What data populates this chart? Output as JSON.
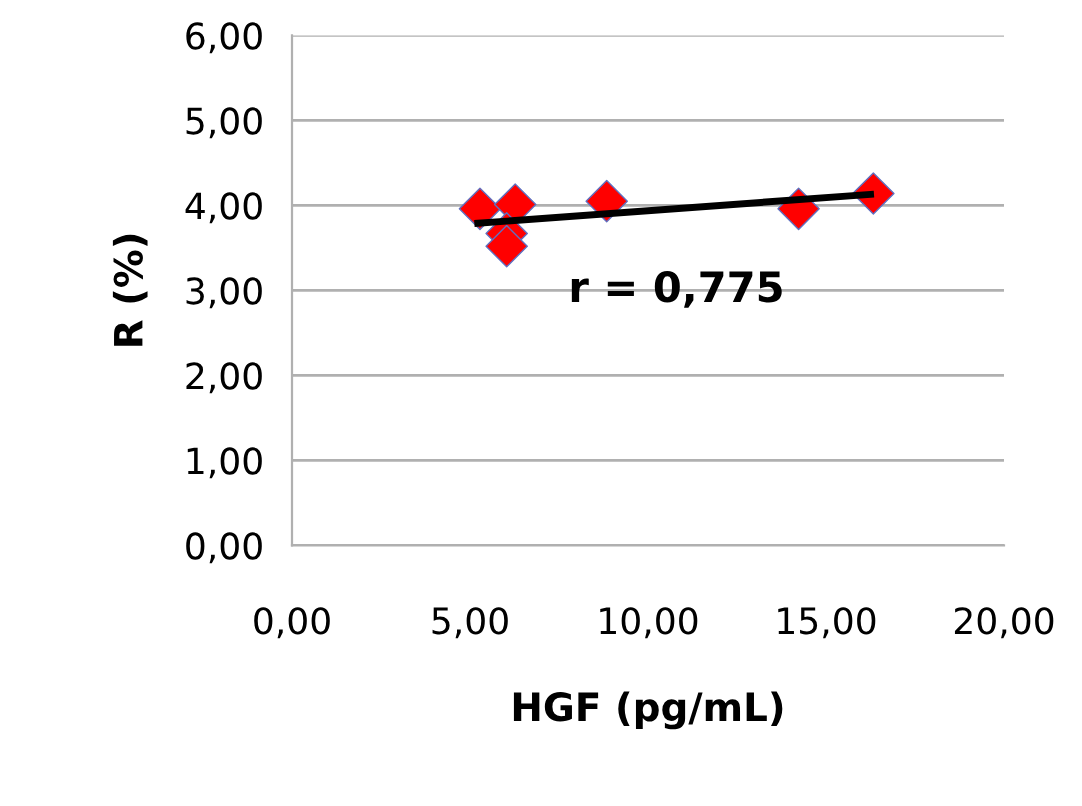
{
  "chart_data": {
    "type": "scatter",
    "xlabel": "HGF (pg/mL)",
    "ylabel": "R (%)",
    "series": [
      {
        "color": "#ff0000",
        "x": [
          5.28,
          6.27,
          6.03,
          6.03,
          8.84,
          14.23,
          16.33
        ],
        "values": [
          3.96,
          4.01,
          3.67,
          3.52,
          4.05,
          3.96,
          4.14
        ],
        "marker": "diamond"
      },
      {
        "type": "line",
        "color": "#000000",
        "x": [
          5.22,
          16.25
        ],
        "values": [
          3.79,
          4.13
        ],
        "marker": "none",
        "line_style": "solid"
      }
    ],
    "annotations": [
      "r = 0,775"
    ],
    "xlim": [
      0,
      20
    ],
    "ylim": [
      0,
      6
    ],
    "xticks": [
      {
        "value": 0,
        "label": "0,00"
      },
      {
        "value": 5,
        "label": "5,00"
      },
      {
        "value": 10,
        "label": "10,00"
      },
      {
        "value": 15,
        "label": "15,00"
      },
      {
        "value": 20,
        "label": "20,00"
      }
    ],
    "yticks": [
      {
        "value": 0,
        "label": "0,00"
      },
      {
        "value": 1,
        "label": "1,00"
      },
      {
        "value": 2,
        "label": "2,00"
      },
      {
        "value": 3,
        "label": "3,00"
      },
      {
        "value": 4,
        "label": "4,00"
      },
      {
        "value": 5,
        "label": "5,00"
      },
      {
        "value": 6,
        "label": "6,00"
      }
    ],
    "grid": "y",
    "legend": false
  }
}
